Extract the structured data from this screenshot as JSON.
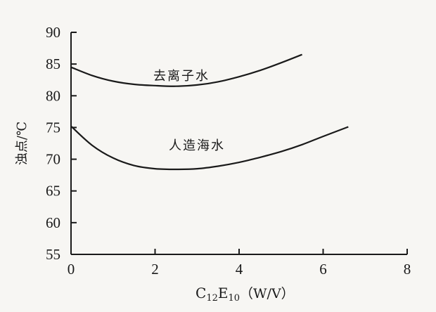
{
  "chart_data": {
    "type": "line",
    "xlim": [
      0,
      8
    ],
    "ylim": [
      55,
      90
    ],
    "x_ticks": [
      "0",
      "2",
      "4",
      "6",
      "8"
    ],
    "y_ticks": [
      "55",
      "60",
      "65",
      "70",
      "75",
      "80",
      "85",
      "90"
    ],
    "xlabel_main": "C",
    "xlabel_sub1": "12",
    "xlabel_mid": "E",
    "xlabel_sub2": "10",
    "xlabel_unit": "（W/V）",
    "ylabel": "浊点/℃",
    "grid": false,
    "series": [
      {
        "name": "去离子水",
        "x": [
          0,
          0.5,
          1,
          1.5,
          2,
          2.5,
          3,
          3.5,
          4,
          4.5,
          5,
          5.5
        ],
        "y": [
          84.5,
          83.2,
          82.3,
          81.8,
          81.6,
          81.5,
          81.7,
          82.2,
          83.0,
          84.0,
          85.2,
          86.5
        ]
      },
      {
        "name": "人造海水",
        "x": [
          0,
          0.5,
          1,
          1.5,
          2,
          2.5,
          3,
          3.5,
          4,
          4.5,
          5,
          5.5,
          6,
          6.6
        ],
        "y": [
          75.2,
          72.2,
          70.2,
          69.0,
          68.5,
          68.4,
          68.5,
          68.9,
          69.5,
          70.3,
          71.2,
          72.3,
          73.6,
          75.1
        ]
      }
    ]
  }
}
